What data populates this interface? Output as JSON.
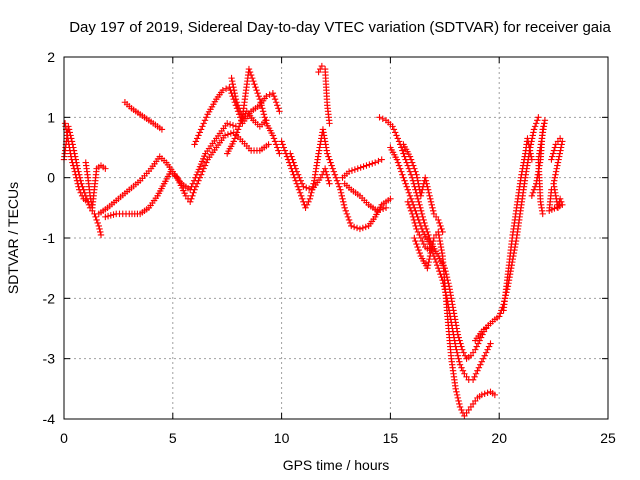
{
  "chart_data": {
    "type": "scatter",
    "title": "Day 197 of 2019, Sidereal Day-to-day VTEC variation (SDTVAR) for receiver gaia",
    "xlabel": "GPS time / hours",
    "ylabel": "SDTVAR / TECUs",
    "xlim": [
      0,
      25
    ],
    "ylim": [
      -4,
      2
    ],
    "xticks": [
      0,
      5,
      10,
      15,
      20,
      25
    ],
    "yticks": [
      -4,
      -3,
      -2,
      -1,
      0,
      1,
      2
    ],
    "grid": true,
    "marker": "+",
    "color": "#ff0000",
    "series": [
      {
        "name": "track-1",
        "points": [
          [
            0.0,
            0.3
          ],
          [
            0.2,
            0.85
          ],
          [
            0.4,
            0.55
          ],
          [
            0.6,
            0.2
          ],
          [
            0.8,
            -0.1
          ],
          [
            1.0,
            -0.3
          ],
          [
            1.2,
            -0.5
          ],
          [
            1.4,
            -0.6
          ],
          [
            1.6,
            -0.8
          ],
          [
            1.7,
            -0.95
          ]
        ]
      },
      {
        "name": "track-2",
        "points": [
          [
            0.05,
            0.9
          ],
          [
            0.2,
            0.6
          ],
          [
            0.35,
            0.3
          ],
          [
            0.5,
            0.1
          ],
          [
            0.7,
            -0.2
          ],
          [
            0.9,
            -0.35
          ],
          [
            1.1,
            -0.4
          ]
        ]
      },
      {
        "name": "track-3",
        "points": [
          [
            1.0,
            0.25
          ],
          [
            1.1,
            0.0
          ],
          [
            1.2,
            -0.3
          ],
          [
            1.3,
            -0.5
          ],
          [
            1.5,
            0.15
          ],
          [
            1.7,
            0.2
          ],
          [
            1.9,
            0.15
          ]
        ]
      },
      {
        "name": "track-4",
        "points": [
          [
            1.6,
            -0.6
          ],
          [
            2.0,
            -0.5
          ],
          [
            2.5,
            -0.35
          ],
          [
            3.0,
            -0.2
          ],
          [
            3.5,
            -0.05
          ],
          [
            4.0,
            0.15
          ],
          [
            4.4,
            0.35
          ],
          [
            4.7,
            0.25
          ],
          [
            5.0,
            0.1
          ],
          [
            5.4,
            -0.1
          ],
          [
            5.8,
            -0.2
          ],
          [
            6.1,
            0.05
          ],
          [
            6.5,
            0.4
          ],
          [
            7.0,
            0.65
          ],
          [
            7.5,
            0.9
          ],
          [
            7.9,
            0.85
          ]
        ]
      },
      {
        "name": "track-5",
        "points": [
          [
            1.9,
            -0.65
          ],
          [
            2.4,
            -0.6
          ],
          [
            3.0,
            -0.6
          ],
          [
            3.5,
            -0.6
          ],
          [
            3.9,
            -0.5
          ],
          [
            4.3,
            -0.3
          ],
          [
            4.6,
            -0.1
          ],
          [
            4.9,
            0.1
          ],
          [
            5.2,
            0.0
          ],
          [
            5.6,
            -0.3
          ],
          [
            5.8,
            -0.4
          ],
          [
            6.0,
            -0.2
          ],
          [
            6.3,
            0.05
          ],
          [
            6.6,
            0.3
          ],
          [
            7.0,
            0.5
          ],
          [
            7.4,
            0.7
          ],
          [
            7.8,
            0.75
          ],
          [
            8.2,
            0.6
          ],
          [
            8.6,
            0.45
          ],
          [
            9.0,
            0.45
          ],
          [
            9.4,
            0.55
          ]
        ]
      },
      {
        "name": "track-6",
        "points": [
          [
            2.8,
            1.25
          ],
          [
            3.1,
            1.15
          ],
          [
            3.5,
            1.05
          ],
          [
            3.9,
            0.95
          ],
          [
            4.3,
            0.85
          ],
          [
            4.5,
            0.8
          ]
        ]
      },
      {
        "name": "track-7",
        "points": [
          [
            6.0,
            0.55
          ],
          [
            6.3,
            0.8
          ],
          [
            6.6,
            1.05
          ],
          [
            7.0,
            1.3
          ],
          [
            7.3,
            1.45
          ],
          [
            7.6,
            1.5
          ],
          [
            7.9,
            1.2
          ],
          [
            8.2,
            0.9
          ],
          [
            8.6,
            1.1
          ],
          [
            9.0,
            1.2
          ],
          [
            9.3,
            1.35
          ],
          [
            9.6,
            1.4
          ],
          [
            9.9,
            1.1
          ]
        ]
      },
      {
        "name": "track-8",
        "points": [
          [
            7.7,
            1.65
          ],
          [
            7.9,
            1.3
          ],
          [
            8.2,
            1.0
          ],
          [
            8.5,
            1.8
          ],
          [
            8.7,
            1.6
          ],
          [
            9.0,
            1.3
          ],
          [
            9.3,
            0.9
          ],
          [
            9.6,
            0.7
          ],
          [
            9.9,
            0.4
          ]
        ]
      },
      {
        "name": "track-9",
        "points": [
          [
            7.5,
            0.4
          ],
          [
            7.8,
            0.6
          ],
          [
            8.1,
            0.9
          ],
          [
            8.4,
            1.1
          ],
          [
            8.7,
            0.95
          ],
          [
            9.0,
            0.85
          ],
          [
            9.3,
            0.95
          ]
        ]
      },
      {
        "name": "track-10",
        "points": [
          [
            10.0,
            0.6
          ],
          [
            10.3,
            0.3
          ],
          [
            10.6,
            0.0
          ],
          [
            10.9,
            -0.3
          ],
          [
            11.1,
            -0.5
          ],
          [
            11.3,
            -0.35
          ],
          [
            11.5,
            -0.05
          ],
          [
            11.7,
            0.4
          ],
          [
            11.9,
            0.8
          ],
          [
            12.1,
            0.4
          ],
          [
            12.3,
            0.2
          ],
          [
            12.5,
            0.0
          ],
          [
            12.7,
            -0.2
          ],
          [
            12.9,
            -0.5
          ],
          [
            13.2,
            -0.8
          ],
          [
            13.6,
            -0.85
          ],
          [
            14.0,
            -0.8
          ],
          [
            14.3,
            -0.65
          ],
          [
            14.6,
            -0.45
          ],
          [
            15.0,
            -0.35
          ]
        ]
      },
      {
        "name": "track-11",
        "points": [
          [
            10.4,
            0.4
          ],
          [
            10.7,
            0.1
          ],
          [
            11.0,
            -0.15
          ],
          [
            11.4,
            -0.2
          ],
          [
            11.8,
            0.0
          ],
          [
            12.0,
            0.15
          ],
          [
            12.2,
            -0.1
          ]
        ]
      },
      {
        "name": "track-12",
        "points": [
          [
            11.7,
            1.75
          ],
          [
            11.85,
            1.85
          ],
          [
            12.0,
            1.8
          ],
          [
            12.1,
            1.2
          ],
          [
            12.2,
            0.9
          ]
        ]
      },
      {
        "name": "track-13",
        "points": [
          [
            12.9,
            -0.1
          ],
          [
            13.2,
            -0.2
          ],
          [
            13.6,
            -0.3
          ],
          [
            14.0,
            -0.45
          ],
          [
            14.4,
            -0.55
          ],
          [
            14.8,
            -0.5
          ]
        ]
      },
      {
        "name": "track-14",
        "points": [
          [
            12.8,
            0.0
          ],
          [
            13.1,
            0.1
          ],
          [
            13.5,
            0.15
          ],
          [
            13.9,
            0.2
          ],
          [
            14.3,
            0.25
          ],
          [
            14.6,
            0.3
          ]
        ]
      },
      {
        "name": "track-15",
        "points": [
          [
            14.5,
            1.0
          ],
          [
            14.8,
            0.95
          ],
          [
            15.1,
            0.85
          ],
          [
            15.4,
            0.6
          ],
          [
            15.7,
            0.3
          ],
          [
            16.0,
            0.0
          ],
          [
            16.3,
            -0.4
          ],
          [
            16.6,
            -0.8
          ],
          [
            16.9,
            -1.1
          ],
          [
            17.2,
            -1.3
          ],
          [
            17.5,
            -1.5
          ],
          [
            17.7,
            -1.8
          ],
          [
            17.9,
            -2.2
          ],
          [
            18.1,
            -2.6
          ],
          [
            18.3,
            -2.85
          ],
          [
            18.5,
            -3.0
          ],
          [
            18.7,
            -2.95
          ],
          [
            18.9,
            -2.85
          ],
          [
            19.1,
            -2.7
          ],
          [
            19.3,
            -2.55
          ],
          [
            19.5,
            -2.45
          ]
        ]
      },
      {
        "name": "track-16",
        "points": [
          [
            15.0,
            0.5
          ],
          [
            15.3,
            0.3
          ],
          [
            15.6,
            0.0
          ],
          [
            15.9,
            -0.3
          ],
          [
            16.2,
            -0.6
          ],
          [
            16.5,
            -0.9
          ],
          [
            16.8,
            -1.1
          ],
          [
            17.1,
            -1.4
          ],
          [
            17.4,
            -1.7
          ],
          [
            17.6,
            -2.0
          ],
          [
            17.8,
            -2.4
          ],
          [
            18.0,
            -2.8
          ],
          [
            18.2,
            -3.1
          ],
          [
            18.4,
            -3.25
          ],
          [
            18.6,
            -3.35
          ],
          [
            18.8,
            -3.35
          ],
          [
            19.0,
            -3.2
          ],
          [
            19.2,
            -3.05
          ],
          [
            19.4,
            -2.9
          ],
          [
            19.6,
            -2.75
          ]
        ]
      },
      {
        "name": "track-17",
        "points": [
          [
            16.1,
            -1.0
          ],
          [
            16.4,
            -1.3
          ],
          [
            16.7,
            -1.5
          ],
          [
            17.0,
            -1.0
          ],
          [
            17.2,
            -0.9
          ],
          [
            17.4,
            -1.3
          ],
          [
            17.6,
            -2.2
          ],
          [
            17.8,
            -3.0
          ],
          [
            18.0,
            -3.5
          ],
          [
            18.2,
            -3.8
          ],
          [
            18.4,
            -3.95
          ],
          [
            18.6,
            -3.85
          ],
          [
            18.8,
            -3.75
          ],
          [
            19.0,
            -3.65
          ],
          [
            19.2,
            -3.6
          ],
          [
            19.6,
            -3.55
          ],
          [
            19.8,
            -3.6
          ]
        ]
      },
      {
        "name": "track-18",
        "points": [
          [
            15.6,
            0.55
          ],
          [
            15.9,
            0.35
          ],
          [
            16.2,
            0.05
          ],
          [
            16.4,
            -0.3
          ],
          [
            16.6,
            0.0
          ],
          [
            16.8,
            -0.3
          ],
          [
            17.0,
            -0.6
          ],
          [
            17.2,
            -0.7
          ],
          [
            17.4,
            -0.9
          ]
        ]
      },
      {
        "name": "track-19",
        "points": [
          [
            15.8,
            -0.4
          ],
          [
            16.0,
            -0.6
          ],
          [
            16.2,
            -0.85
          ],
          [
            16.4,
            -1.0
          ],
          [
            16.6,
            -1.15
          ],
          [
            16.8,
            -1.2
          ]
        ]
      },
      {
        "name": "track-20",
        "points": [
          [
            18.9,
            -2.7
          ],
          [
            19.2,
            -2.55
          ],
          [
            19.5,
            -2.45
          ],
          [
            19.8,
            -2.35
          ],
          [
            20.0,
            -2.3
          ],
          [
            20.2,
            -2.1
          ],
          [
            20.4,
            -1.8
          ],
          [
            20.6,
            -1.4
          ],
          [
            20.8,
            -1.0
          ],
          [
            21.0,
            -0.5
          ],
          [
            21.2,
            0.0
          ],
          [
            21.4,
            0.45
          ],
          [
            21.6,
            0.8
          ],
          [
            21.8,
            1.0
          ]
        ]
      },
      {
        "name": "track-21",
        "points": [
          [
            20.2,
            -2.2
          ],
          [
            20.4,
            -1.6
          ],
          [
            20.6,
            -1.0
          ],
          [
            20.8,
            -0.5
          ],
          [
            21.0,
            0.0
          ],
          [
            21.2,
            0.4
          ],
          [
            21.3,
            0.65
          ],
          [
            21.5,
            0.3
          ]
        ]
      },
      {
        "name": "track-22",
        "points": [
          [
            21.5,
            -0.3
          ],
          [
            21.7,
            -0.1
          ],
          [
            21.9,
            0.3
          ],
          [
            22.0,
            0.8
          ],
          [
            22.1,
            0.95
          ],
          [
            21.8,
            0.3
          ],
          [
            21.9,
            -0.4
          ],
          [
            22.0,
            -0.6
          ]
        ]
      },
      {
        "name": "track-23",
        "points": [
          [
            22.4,
            0.3
          ],
          [
            22.6,
            0.55
          ],
          [
            22.8,
            0.65
          ],
          [
            22.9,
            0.6
          ],
          [
            22.5,
            -0.1
          ],
          [
            22.6,
            -0.3
          ],
          [
            22.7,
            -0.5
          ],
          [
            22.8,
            -0.35
          ],
          [
            22.9,
            -0.45
          ],
          [
            22.3,
            -0.55
          ],
          [
            22.4,
            -0.2
          ]
        ]
      }
    ]
  }
}
